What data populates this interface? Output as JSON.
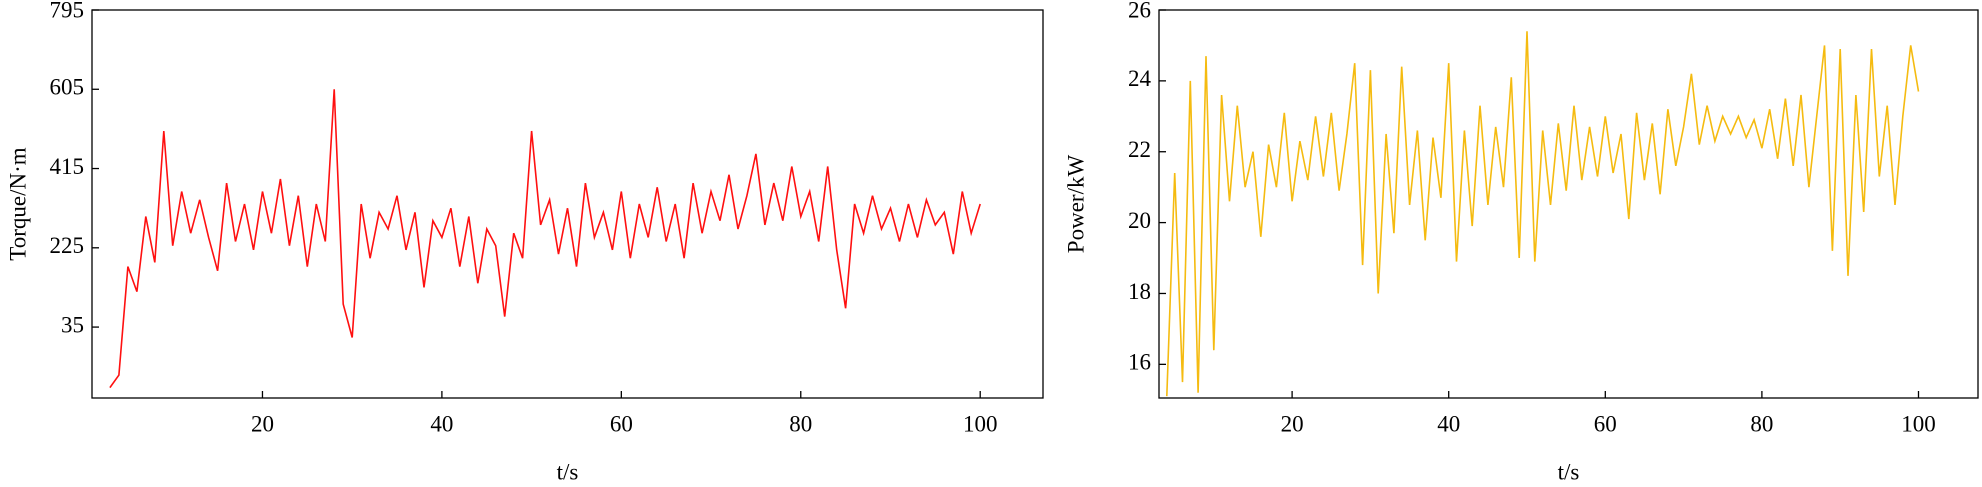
{
  "chart_data": [
    {
      "type": "line",
      "y_label": "Torque/N·m",
      "x_label": "t/s",
      "xlim": [
        1,
        107
      ],
      "xticks": [
        20,
        40,
        60,
        80,
        100
      ],
      "ylim": [
        -135,
        795
      ],
      "yticks": [
        35,
        225,
        415,
        605,
        795
      ],
      "series": [
        {
          "color": "#ff1010",
          "x": [
            3,
            4,
            5,
            6,
            7,
            8,
            9,
            10,
            11,
            12,
            13,
            14,
            15,
            16,
            17,
            18,
            19,
            20,
            21,
            22,
            23,
            24,
            25,
            26,
            27,
            28,
            29,
            30,
            31,
            32,
            33,
            34,
            35,
            36,
            37,
            38,
            39,
            40,
            41,
            42,
            43,
            44,
            45,
            46,
            47,
            48,
            49,
            50,
            51,
            52,
            53,
            54,
            55,
            56,
            57,
            58,
            59,
            60,
            61,
            62,
            63,
            64,
            65,
            66,
            67,
            68,
            69,
            70,
            71,
            72,
            73,
            74,
            75,
            76,
            77,
            78,
            79,
            80,
            81,
            82,
            83,
            84,
            85,
            86,
            87,
            88,
            89,
            90,
            91,
            92,
            93,
            94,
            95,
            96,
            97,
            98,
            99,
            100
          ],
          "values": [
            -110,
            -80,
            180,
            120,
            300,
            190,
            505,
            230,
            360,
            260,
            340,
            250,
            170,
            380,
            240,
            330,
            220,
            360,
            260,
            390,
            230,
            350,
            180,
            330,
            240,
            605,
            90,
            10,
            330,
            200,
            310,
            270,
            350,
            220,
            310,
            130,
            290,
            250,
            320,
            180,
            300,
            140,
            270,
            230,
            60,
            260,
            200,
            505,
            280,
            340,
            210,
            320,
            180,
            380,
            250,
            310,
            220,
            360,
            200,
            330,
            250,
            370,
            240,
            330,
            200,
            380,
            260,
            360,
            290,
            400,
            270,
            350,
            450,
            280,
            380,
            290,
            420,
            300,
            360,
            240,
            420,
            220,
            80,
            330,
            260,
            350,
            270,
            320,
            240,
            330,
            250,
            340,
            280,
            310,
            210,
            360,
            260,
            330
          ]
        }
      ]
    },
    {
      "type": "line",
      "y_label": "Power/kW",
      "x_label": "t/s",
      "xlim": [
        3,
        107.6
      ],
      "xticks": [
        20,
        40,
        60,
        80,
        100
      ],
      "ylim": [
        15.05,
        26
      ],
      "yticks": [
        16,
        18,
        20,
        22,
        24,
        26
      ],
      "series": [
        {
          "color": "#f5bb10",
          "x": [
            4,
            5,
            6,
            7,
            8,
            9,
            10,
            11,
            12,
            13,
            14,
            15,
            16,
            17,
            18,
            19,
            20,
            21,
            22,
            23,
            24,
            25,
            26,
            27,
            28,
            29,
            30,
            31,
            32,
            33,
            34,
            35,
            36,
            37,
            38,
            39,
            40,
            41,
            42,
            43,
            44,
            45,
            46,
            47,
            48,
            49,
            50,
            51,
            52,
            53,
            54,
            55,
            56,
            57,
            58,
            59,
            60,
            61,
            62,
            63,
            64,
            65,
            66,
            67,
            68,
            69,
            70,
            71,
            72,
            73,
            74,
            75,
            76,
            77,
            78,
            79,
            80,
            81,
            82,
            83,
            84,
            85,
            86,
            87,
            88,
            89,
            90,
            91,
            92,
            93,
            94,
            95,
            96,
            97,
            98,
            99,
            100
          ],
          "values": [
            15.1,
            21.4,
            15.5,
            24.0,
            15.2,
            24.7,
            16.4,
            23.6,
            20.6,
            23.3,
            21.0,
            22.0,
            19.6,
            22.2,
            21.0,
            23.1,
            20.6,
            22.3,
            21.2,
            23.0,
            21.3,
            23.1,
            20.9,
            22.5,
            24.5,
            18.8,
            24.3,
            18.0,
            22.5,
            19.7,
            24.4,
            20.5,
            22.6,
            19.5,
            22.4,
            20.7,
            24.5,
            18.9,
            22.6,
            19.9,
            23.3,
            20.5,
            22.7,
            21.0,
            24.1,
            19.0,
            25.4,
            18.9,
            22.6,
            20.5,
            22.8,
            20.9,
            23.3,
            21.2,
            22.7,
            21.3,
            23.0,
            21.4,
            22.5,
            20.1,
            23.1,
            21.2,
            22.8,
            20.8,
            23.2,
            21.6,
            22.7,
            24.2,
            22.2,
            23.3,
            22.3,
            23.0,
            22.5,
            23.0,
            22.4,
            22.9,
            22.1,
            23.2,
            21.8,
            23.5,
            21.6,
            23.6,
            21.0,
            23.0,
            25.0,
            19.2,
            24.9,
            18.5,
            23.6,
            20.3,
            24.9,
            21.3,
            23.3,
            20.5,
            23.0,
            25.0,
            23.7
          ]
        }
      ]
    }
  ]
}
